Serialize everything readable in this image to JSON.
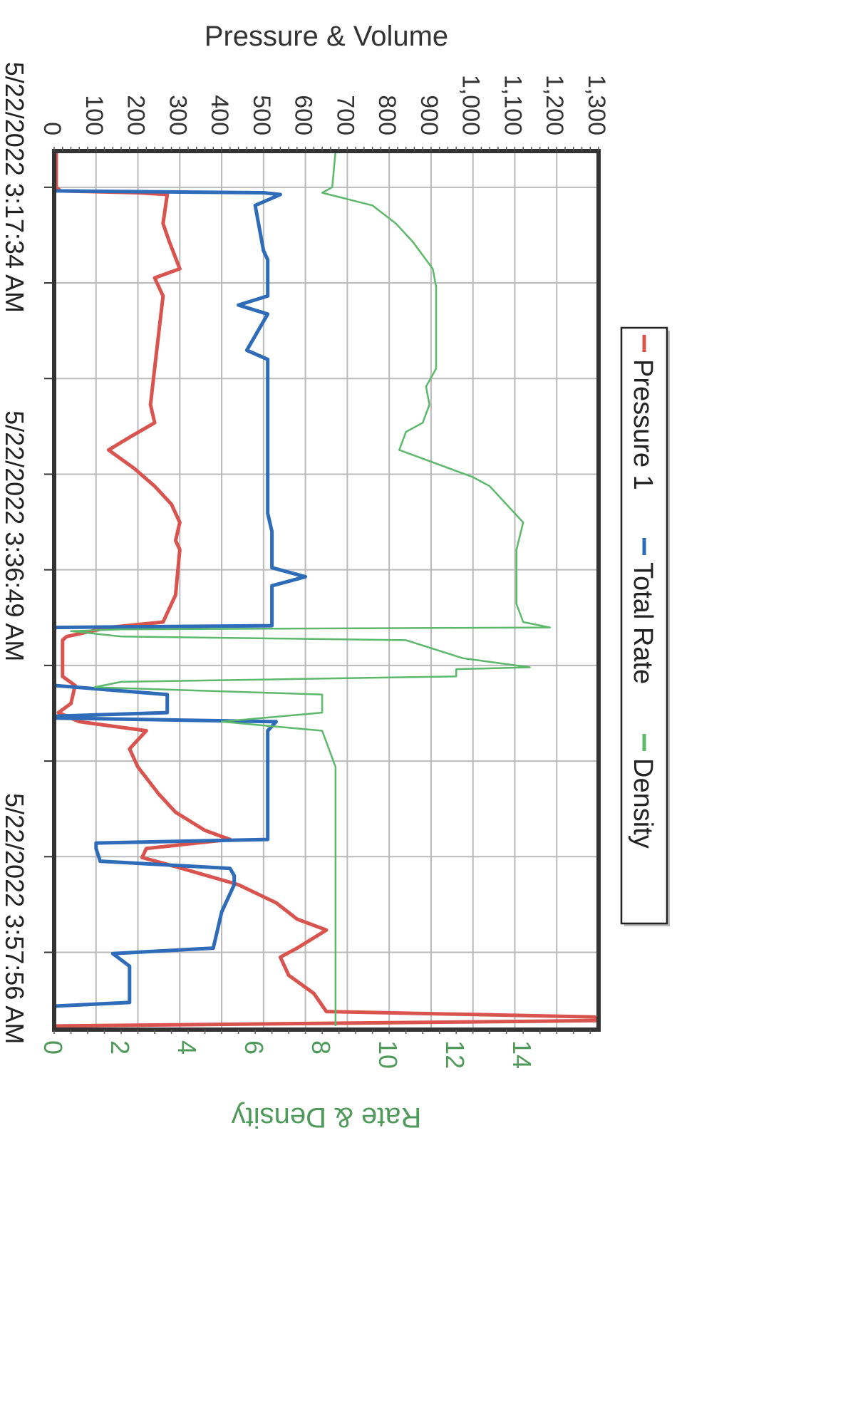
{
  "chart_data": {
    "type": "line",
    "orientation": "rotated-90-clockwise",
    "title": "",
    "left_axis": {
      "label": "Pressure & Volume",
      "range": [
        0,
        1300
      ],
      "ticks": [
        "0",
        "100",
        "200",
        "300",
        "400",
        "500",
        "600",
        "700",
        "800",
        "900",
        "1,000",
        "1,100",
        "1,200",
        "1,300"
      ]
    },
    "right_axis": {
      "label": "Rate & Density",
      "range": [
        0,
        16.25
      ],
      "ticks": [
        "0",
        "2",
        "4",
        "6",
        "8",
        "10",
        "12",
        "14"
      ]
    },
    "x_axis": {
      "unit": "minutes after 5/22/2022 3:17:34 AM",
      "tick_labels": [
        {
          "t": 0,
          "label": "5/22/2022 3:17:34 AM"
        },
        {
          "t": 19.25,
          "label": "5/22/2022 3:36:49 AM"
        },
        {
          "t": 40.37,
          "label": "5/22/2022 3:57:56 AM"
        }
      ],
      "range": [
        -2.0,
        46.5
      ]
    },
    "grid": true,
    "legend": {
      "placement": "right",
      "entries": [
        {
          "name": "Pressure 1",
          "color": "#d9534f"
        },
        {
          "name": "Total Rate",
          "color": "#2e6bb8"
        },
        {
          "name": "Density",
          "color": "#5cb86a"
        }
      ]
    },
    "series": [
      {
        "name": "Pressure 1",
        "axis": "left",
        "color": "#d9534f",
        "points": [
          [
            -2,
            5
          ],
          [
            0,
            5
          ],
          [
            0.2,
            15
          ],
          [
            0.3,
            200
          ],
          [
            0.4,
            270
          ],
          [
            2,
            260
          ],
          [
            3,
            275
          ],
          [
            4.5,
            300
          ],
          [
            5,
            240
          ],
          [
            6,
            260
          ],
          [
            8,
            250
          ],
          [
            10,
            240
          ],
          [
            12,
            230
          ],
          [
            13,
            240
          ],
          [
            13.8,
            180
          ],
          [
            14.5,
            130
          ],
          [
            15,
            160
          ],
          [
            15.5,
            190
          ],
          [
            16.5,
            240
          ],
          [
            17.5,
            280
          ],
          [
            18.5,
            300
          ],
          [
            19.5,
            290
          ],
          [
            20,
            300
          ],
          [
            22.5,
            290
          ],
          [
            24,
            260
          ],
          [
            24.3,
            130
          ],
          [
            24.8,
            30
          ],
          [
            25,
            20
          ],
          [
            27,
            20
          ],
          [
            27.5,
            50
          ],
          [
            28.5,
            40
          ],
          [
            29,
            10
          ],
          [
            29.5,
            60
          ],
          [
            30,
            220
          ],
          [
            31,
            180
          ],
          [
            32,
            200
          ],
          [
            33.5,
            250
          ],
          [
            34.5,
            290
          ],
          [
            35.5,
            360
          ],
          [
            36,
            420
          ],
          [
            36.5,
            220
          ],
          [
            37,
            210
          ],
          [
            37.5,
            290
          ],
          [
            38.5,
            440
          ],
          [
            39.5,
            530
          ],
          [
            40.4,
            580
          ],
          [
            41,
            650
          ],
          [
            42,
            580
          ],
          [
            42.5,
            540
          ],
          [
            43.5,
            560
          ],
          [
            44.5,
            620
          ],
          [
            45.5,
            650
          ],
          [
            45.8,
            1290
          ],
          [
            46,
            1300
          ],
          [
            46.3,
            5
          ]
        ]
      },
      {
        "name": "Total Rate",
        "axis": "left",
        "color": "#2e6bb8",
        "points": [
          [
            -2,
            0
          ],
          [
            0,
            0
          ],
          [
            0.2,
            0
          ],
          [
            0.3,
            500
          ],
          [
            0.4,
            540
          ],
          [
            1,
            480
          ],
          [
            3.5,
            500
          ],
          [
            4,
            510
          ],
          [
            6,
            510
          ],
          [
            6.5,
            440
          ],
          [
            7,
            510
          ],
          [
            9,
            460
          ],
          [
            9.5,
            510
          ],
          [
            12,
            510
          ],
          [
            14,
            510
          ],
          [
            16,
            510
          ],
          [
            18,
            510
          ],
          [
            19,
            520
          ],
          [
            20,
            520
          ],
          [
            21,
            520
          ],
          [
            21.5,
            600
          ],
          [
            22,
            520
          ],
          [
            24.2,
            520
          ],
          [
            24.3,
            0
          ],
          [
            26,
            0
          ],
          [
            27.5,
            0
          ],
          [
            28,
            270
          ],
          [
            29,
            270
          ],
          [
            29.2,
            0
          ],
          [
            29.3,
            0
          ],
          [
            29.5,
            530
          ],
          [
            30,
            510
          ],
          [
            31,
            510
          ],
          [
            32,
            510
          ],
          [
            34,
            510
          ],
          [
            36,
            510
          ],
          [
            36.2,
            100
          ],
          [
            36.5,
            100
          ],
          [
            37.2,
            110
          ],
          [
            37.6,
            420
          ],
          [
            38,
            430
          ],
          [
            38.5,
            430
          ],
          [
            39,
            420
          ],
          [
            40,
            400
          ],
          [
            41,
            390
          ],
          [
            42,
            380
          ],
          [
            42.3,
            140
          ],
          [
            43,
            180
          ],
          [
            45,
            180
          ],
          [
            45.2,
            0
          ],
          [
            46.5,
            0
          ]
        ]
      },
      {
        "name": "Density",
        "axis": "right",
        "color": "#5cb86a",
        "points": [
          [
            -2,
            8.4
          ],
          [
            0,
            8.3
          ],
          [
            0.3,
            8.0
          ],
          [
            1,
            9.5
          ],
          [
            2,
            10.2
          ],
          [
            3,
            10.7
          ],
          [
            4.5,
            11.3
          ],
          [
            5.5,
            11.4
          ],
          [
            8,
            11.4
          ],
          [
            10,
            11.4
          ],
          [
            11,
            11.1
          ],
          [
            12,
            11.2
          ],
          [
            13,
            11.0
          ],
          [
            13.5,
            10.5
          ],
          [
            14.5,
            10.3
          ],
          [
            16,
            12.5
          ],
          [
            16.5,
            13.0
          ],
          [
            18.5,
            14.0
          ],
          [
            20,
            13.8
          ],
          [
            21,
            13.8
          ],
          [
            23,
            13.8
          ],
          [
            24,
            14.0
          ],
          [
            24.3,
            14.8
          ],
          [
            24.4,
            2.0
          ],
          [
            24.5,
            0.5
          ],
          [
            24.8,
            2.0
          ],
          [
            25,
            10.5
          ],
          [
            26,
            12.2
          ],
          [
            26.5,
            14.2
          ],
          [
            26.6,
            12.0
          ],
          [
            27,
            12.0
          ],
          [
            27.3,
            2.0
          ],
          [
            27.6,
            1.2
          ],
          [
            28,
            8.0
          ],
          [
            29,
            8.0
          ],
          [
            29.5,
            5.0
          ],
          [
            30,
            8.0
          ],
          [
            31,
            8.2
          ],
          [
            32,
            8.4
          ],
          [
            34,
            8.4
          ],
          [
            36,
            8.4
          ],
          [
            38,
            8.4
          ],
          [
            40,
            8.4
          ],
          [
            42,
            8.4
          ],
          [
            44,
            8.4
          ],
          [
            46,
            8.4
          ],
          [
            46.3,
            8.4
          ]
        ]
      }
    ]
  }
}
